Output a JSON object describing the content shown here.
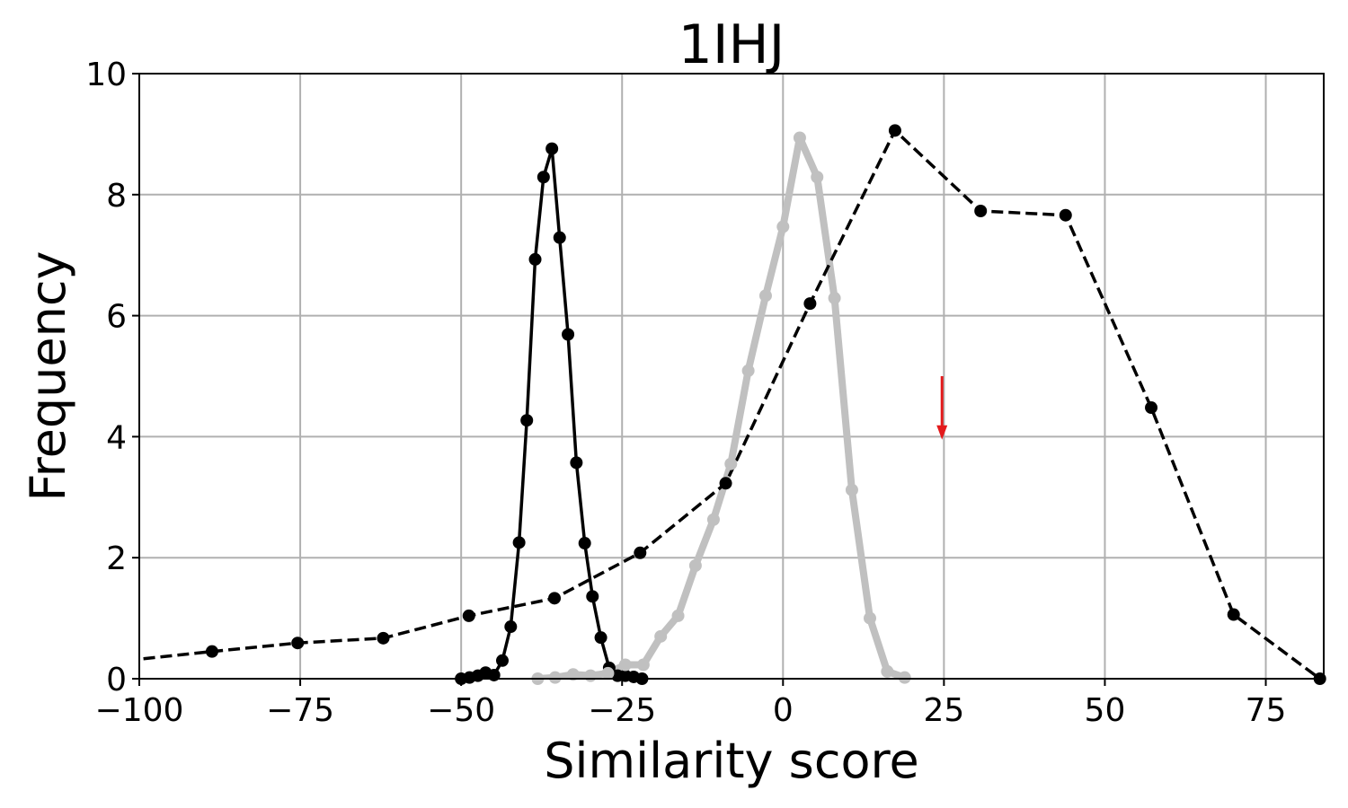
{
  "chart_data": {
    "type": "line",
    "title": "1IHJ",
    "xlabel": "Similarity score",
    "ylabel": "Frequency",
    "xlim": [
      -100,
      84
    ],
    "ylim": [
      0,
      10
    ],
    "xticks": [
      -100,
      -75,
      -50,
      -25,
      0,
      25,
      50,
      75
    ],
    "xtick_labels": [
      "−100",
      "−75",
      "−50",
      "−25",
      "0",
      "25",
      "50",
      "75"
    ],
    "yticks": [
      0,
      2,
      4,
      6,
      8,
      10
    ],
    "ytick_labels": [
      "0",
      "2",
      "4",
      "6",
      "8",
      "10"
    ],
    "grid": true,
    "series": [
      {
        "color": "#000000",
        "style": "solid",
        "x": [
          -50.0,
          -48.7,
          -47.4,
          -46.2,
          -44.9,
          -43.6,
          -42.3,
          -41.0,
          -39.8,
          -38.5,
          -37.2,
          -35.9,
          -34.7,
          -33.4,
          -32.1,
          -30.8,
          -29.6,
          -28.3,
          -27.0,
          -25.7,
          -24.5,
          -23.2,
          -21.9
        ],
        "y": [
          0.0,
          0.02,
          0.05,
          0.1,
          0.06,
          0.3,
          0.86,
          2.25,
          4.27,
          6.93,
          8.29,
          8.76,
          7.29,
          5.69,
          3.57,
          2.24,
          1.36,
          0.68,
          0.18,
          0.05,
          0.05,
          0.03,
          0.0
        ]
      },
      {
        "color": "#c0c0c0",
        "style": "solid-thick",
        "x": [
          -38.1,
          -35.4,
          -32.6,
          -29.9,
          -27.2,
          -24.5,
          -21.7,
          -19.0,
          -16.3,
          -13.6,
          -10.8,
          -8.1,
          -5.4,
          -2.7,
          0.0,
          2.6,
          5.3,
          8.0,
          10.7,
          13.5,
          16.2,
          18.9
        ],
        "y": [
          0.0,
          0.02,
          0.07,
          0.05,
          0.09,
          0.23,
          0.23,
          0.7,
          1.04,
          1.87,
          2.63,
          3.55,
          5.09,
          6.33,
          7.47,
          8.94,
          8.29,
          6.29,
          3.12,
          1.0,
          0.12,
          0.02
        ]
      },
      {
        "color": "#000000",
        "style": "dashed",
        "x": [
          -102.0,
          -88.7,
          -75.4,
          -62.1,
          -48.8,
          -35.5,
          -22.2,
          -8.9,
          4.2,
          17.4,
          30.7,
          43.9,
          57.2,
          70.0,
          83.4
        ],
        "y": [
          0.3,
          0.45,
          0.59,
          0.67,
          1.04,
          1.33,
          2.08,
          3.23,
          6.2,
          9.06,
          7.73,
          7.66,
          4.48,
          1.06,
          0.0
        ]
      }
    ],
    "annotations": [
      {
        "type": "arrow",
        "color": "#e31a1c",
        "x": 24.7,
        "y_from": 5.0,
        "y_to": 3.95
      }
    ]
  }
}
